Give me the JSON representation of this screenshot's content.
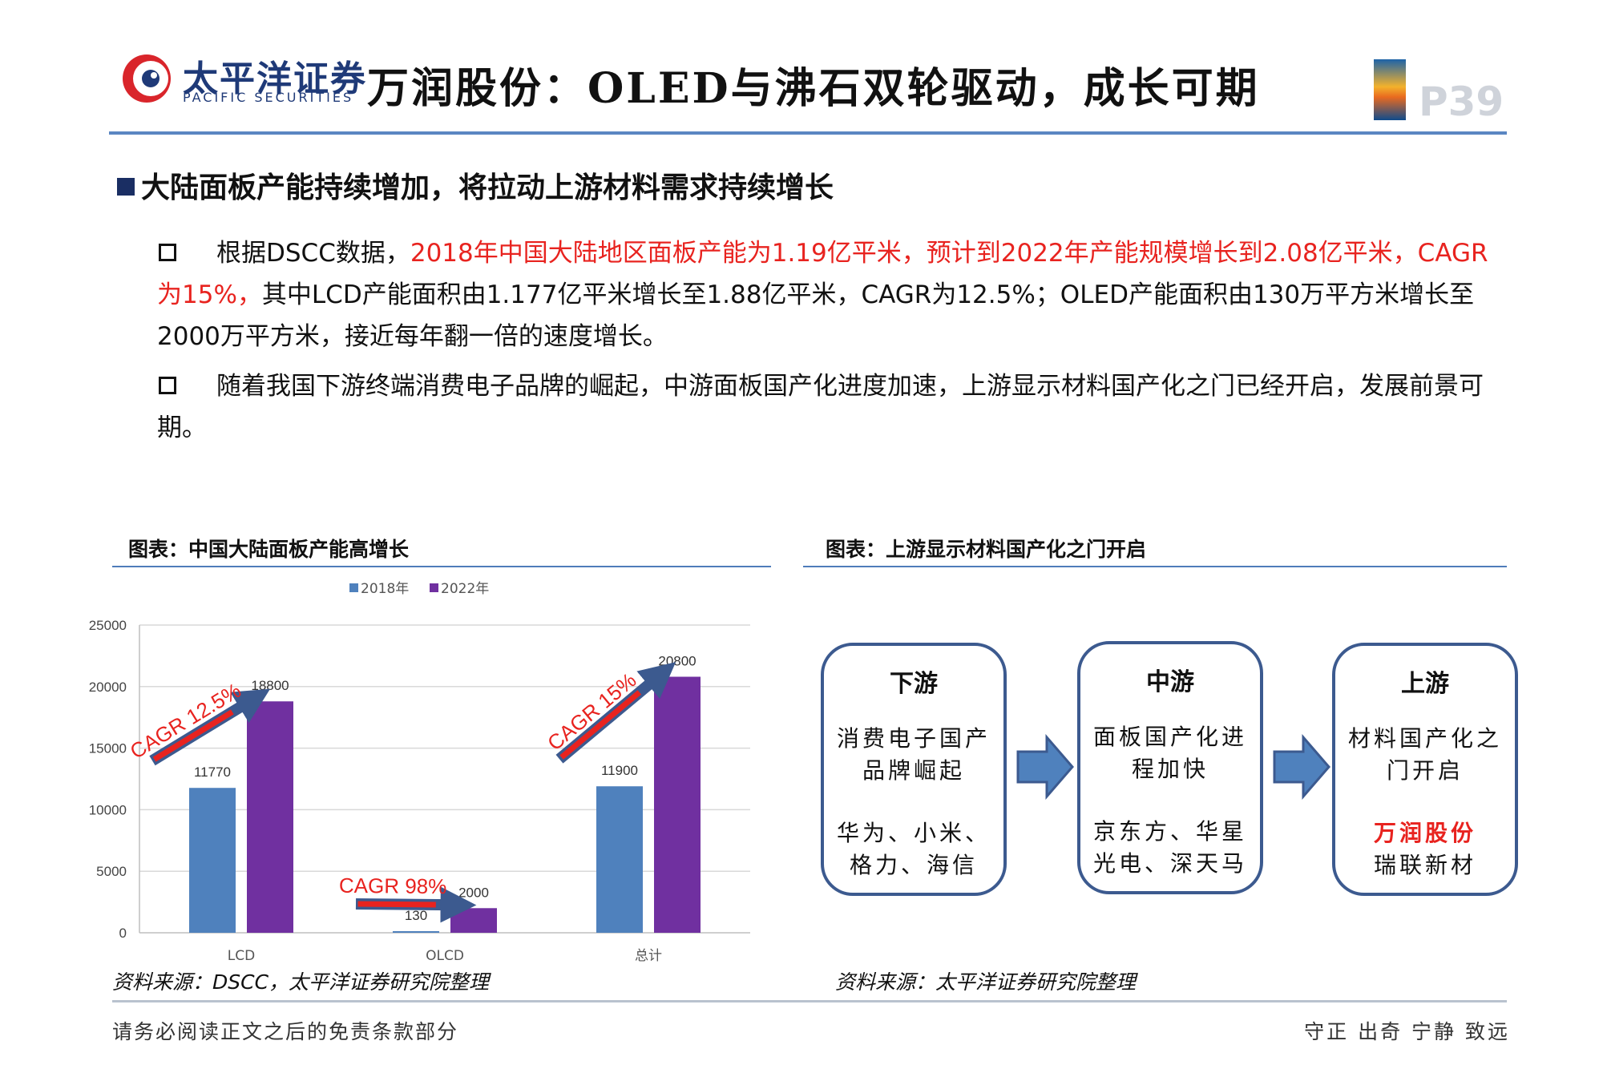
{
  "header": {
    "logo_cn": "太平洋证券",
    "logo_en": "PACIFIC SECURITIES",
    "title": "万润股份：OLED与沸石双轮驱动，成长可期",
    "page_number": "P39"
  },
  "section": {
    "title": "大陆面板产能持续增加，将拉动上游材料需求持续增长"
  },
  "bullets": [
    {
      "part1": "根据DSCC数据，",
      "highlight": "2018年中国大陆地区面板产能为1.19亿平米，预计到2022年产能规模增长到2.08亿平米，CAGR为15%，",
      "part2": "其中LCD产能面积由1.177亿平米增长至1.88亿平米，CAGR为12.5%；OLED产能面积由130万平方米增长至2000万平方米，接近每年翻一倍的速度增长。"
    },
    {
      "part1": "随着我国下游终端消费电子品牌的崛起，中游面板国产化进度加速，上游显示材料国产化之门已经开启，发展前景可期。"
    }
  ],
  "figure_left": {
    "caption": "图表：中国大陆面板产能高增长",
    "source": "资料来源：DSCC，太平洋证券研究院整理"
  },
  "figure_right": {
    "caption": "图表：上游显示材料国产化之门开启",
    "source": "资料来源：太平洋证券研究院整理",
    "boxes": [
      {
        "title": "下游",
        "text1": "消费电子国产品牌崛起",
        "text2": "华为、小米、格力、海信",
        "highlight": ""
      },
      {
        "title": "中游",
        "text1": "面板国产化进程加快",
        "text2": "京东方、华星光电、深天马",
        "highlight": ""
      },
      {
        "title": "上游",
        "text1": "材料国产化之门开启",
        "text2": "瑞联新材",
        "highlight": "万润股份"
      }
    ]
  },
  "chart_data": {
    "type": "bar",
    "categories": [
      "LCD",
      "OLCD",
      "总计"
    ],
    "series": [
      {
        "name": "2018年",
        "color": "#4f81bd",
        "values": [
          11770,
          130,
          11900
        ]
      },
      {
        "name": "2022年",
        "color": "#7030a0",
        "values": [
          18800,
          2000,
          20800
        ]
      }
    ],
    "ylim": [
      0,
      25000
    ],
    "yticks": [
      0,
      5000,
      10000,
      15000,
      20000,
      25000
    ],
    "legend": "top-center",
    "grid": true,
    "annotations": [
      "CAGR 12.5%",
      "CAGR 98%",
      "CAGR 15%"
    ]
  },
  "footer": {
    "left": "请务必阅读正文之后的免责条款部分",
    "right": "守正 出奇 宁静 致远"
  },
  "colors": {
    "accent": "#1f3a78",
    "highlight_red": "#e8231f",
    "rule_blue": "#5b86c2"
  }
}
